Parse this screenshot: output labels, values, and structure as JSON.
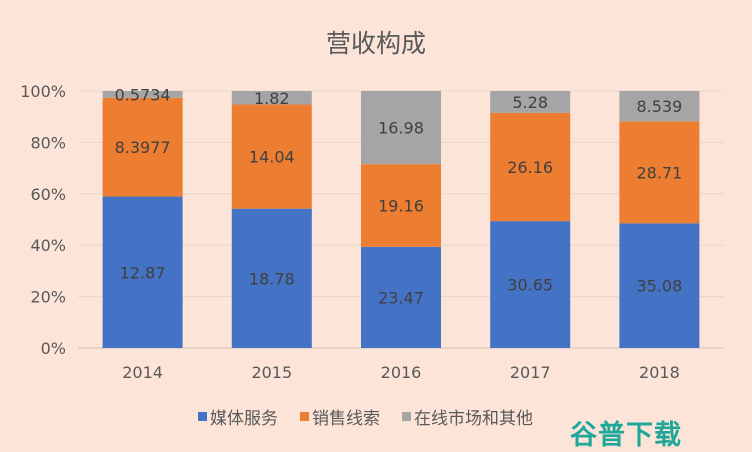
{
  "chart_data": {
    "type": "bar",
    "stacked": "percent",
    "title": "营收构成",
    "categories": [
      "2014",
      "2015",
      "2016",
      "2017",
      "2018"
    ],
    "series": [
      {
        "name": "媒体服务",
        "color": "#4472c4",
        "values": [
          12.87,
          18.78,
          23.47,
          30.65,
          35.08
        ],
        "labels": [
          "12.87",
          "18.78",
          "23.47",
          "30.65",
          "35.08"
        ]
      },
      {
        "name": "销售线索",
        "color": "#ed7d31",
        "values": [
          8.3977,
          14.04,
          19.16,
          26.16,
          28.71
        ],
        "labels": [
          "8.3977",
          "14.04",
          "19.16",
          "26.16",
          "28.71"
        ]
      },
      {
        "name": "在线市场和其他",
        "color": "#a5a5a5",
        "values": [
          0.5734,
          1.82,
          16.98,
          5.28,
          8.539
        ],
        "labels": [
          "0.5734",
          "1.82",
          "16.98",
          "5.28",
          "8.539"
        ]
      }
    ],
    "yticks": [
      "0%",
      "20%",
      "40%",
      "60%",
      "80%",
      "100%"
    ],
    "ylim": [
      0,
      100
    ],
    "grid": true,
    "legend": "bottom"
  },
  "watermark": "谷普下载"
}
